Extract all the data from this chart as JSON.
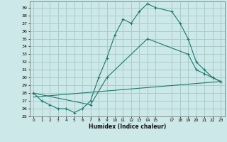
{
  "xlabel": "Humidex (Indice chaleur)",
  "background_color": "#cce8e8",
  "grid_color": "#aacccc",
  "line_color": "#1a7a6e",
  "xlim": [
    -0.5,
    23.5
  ],
  "ylim": [
    25,
    39.8
  ],
  "xticks": [
    0,
    1,
    2,
    3,
    4,
    5,
    6,
    7,
    8,
    9,
    10,
    11,
    12,
    13,
    14,
    15,
    17,
    18,
    19,
    20,
    21,
    22,
    23
  ],
  "yticks": [
    25,
    26,
    27,
    28,
    29,
    30,
    31,
    32,
    33,
    34,
    35,
    36,
    37,
    38,
    39
  ],
  "line1_x": [
    0,
    1,
    2,
    3,
    4,
    5,
    6,
    7,
    8,
    9,
    10,
    11,
    12,
    13,
    14,
    15,
    17,
    18,
    19,
    20,
    21,
    22,
    23
  ],
  "line1_y": [
    28.0,
    27.0,
    26.5,
    26.0,
    26.0,
    25.5,
    26.0,
    27.0,
    30.0,
    32.5,
    35.5,
    37.5,
    37.0,
    38.5,
    39.5,
    39.0,
    38.5,
    37.0,
    35.0,
    32.0,
    31.0,
    30.0,
    29.5
  ],
  "line2_x": [
    0,
    7,
    9,
    14,
    19,
    20,
    21,
    22,
    23
  ],
  "line2_y": [
    28.0,
    26.5,
    30.0,
    35.0,
    33.0,
    31.0,
    30.5,
    30.0,
    29.5
  ],
  "line3_x": [
    0,
    23
  ],
  "line3_y": [
    27.5,
    29.5
  ]
}
